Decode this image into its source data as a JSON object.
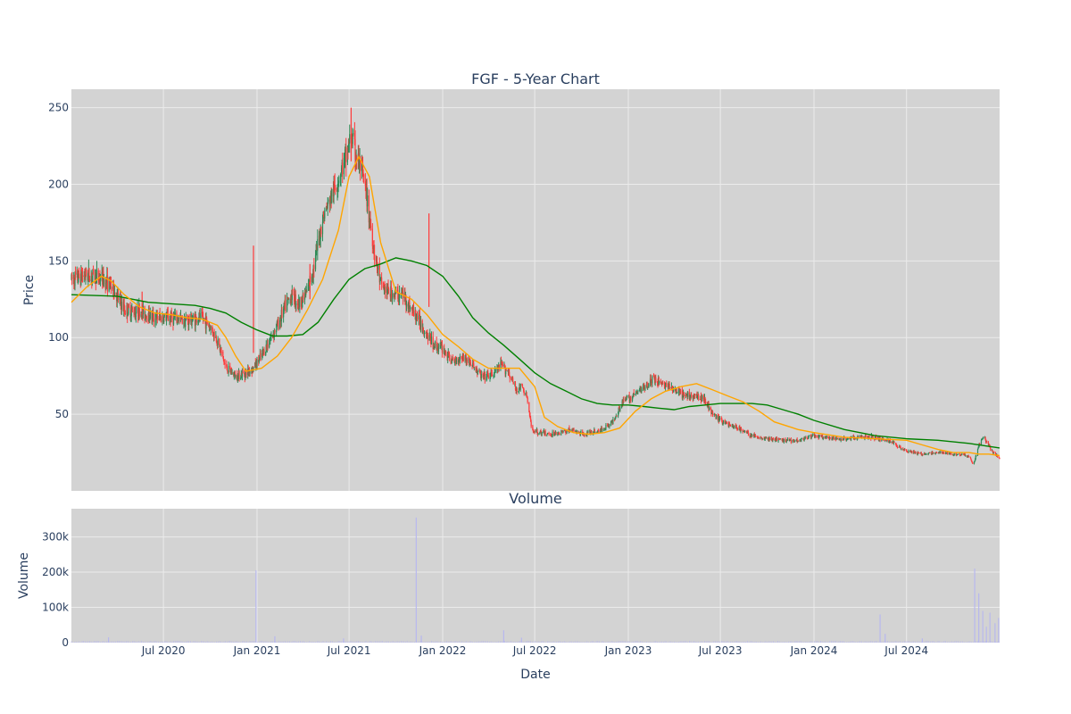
{
  "chart_data": [
    {
      "type": "candlestick",
      "title": "FGF - 5-Year Chart",
      "ylabel": "Price",
      "ylim": [
        0,
        262
      ],
      "yticks": [
        50,
        100,
        150,
        200,
        250
      ],
      "xlim": [
        "2020-01-02",
        "2024-12-31"
      ],
      "grid": true,
      "legend": "none",
      "colors": {
        "up": "#2e8b57",
        "down": "#ff3b3b",
        "ma_short": "#ffa500",
        "ma_long": "#008000",
        "plot_bg": "#d3d3d3",
        "grid": "#ebebeb"
      },
      "close_trend": {
        "x": [
          "2020-01-02",
          "2020-02-01",
          "2020-03-01",
          "2020-03-20",
          "2020-04-15",
          "2020-05-15",
          "2020-06-15",
          "2020-07-15",
          "2020-08-15",
          "2020-09-15",
          "2020-10-01",
          "2020-10-15",
          "2020-11-01",
          "2020-11-20",
          "2020-12-10",
          "2020-12-25",
          "2021-01-10",
          "2021-01-25",
          "2021-02-10",
          "2021-02-25",
          "2021-03-10",
          "2021-03-25",
          "2021-04-10",
          "2021-04-25",
          "2021-05-10",
          "2021-05-25",
          "2021-06-10",
          "2021-06-25",
          "2021-07-05",
          "2021-07-15",
          "2021-07-25",
          "2021-08-05",
          "2021-08-20",
          "2021-09-01",
          "2021-09-15",
          "2021-10-01",
          "2021-10-15",
          "2021-11-01",
          "2021-11-15",
          "2021-12-01",
          "2021-12-15",
          "2022-01-01",
          "2022-01-20",
          "2022-02-10",
          "2022-03-01",
          "2022-03-20",
          "2022-04-10",
          "2022-04-25",
          "2022-05-10",
          "2022-05-25",
          "2022-06-05",
          "2022-06-15",
          "2022-06-25",
          "2022-07-10",
          "2022-08-01",
          "2022-08-20",
          "2022-09-10",
          "2022-10-01",
          "2022-10-20",
          "2022-11-10",
          "2022-12-01",
          "2022-12-20",
          "2023-01-10",
          "2023-02-01",
          "2023-02-20",
          "2023-03-10",
          "2023-04-01",
          "2023-04-20",
          "2023-05-10",
          "2023-06-01",
          "2023-06-15",
          "2023-07-01",
          "2023-07-20",
          "2023-08-10",
          "2023-09-01",
          "2023-10-01",
          "2023-11-01",
          "2023-12-01",
          "2024-01-01",
          "2024-02-01",
          "2024-03-01",
          "2024-04-01",
          "2024-05-01",
          "2024-06-01",
          "2024-07-01",
          "2024-08-01",
          "2024-09-01",
          "2024-10-01",
          "2024-10-20",
          "2024-11-01",
          "2024-11-10",
          "2024-11-20",
          "2024-12-01",
          "2024-12-15",
          "2024-12-31"
        ],
        "close": [
          138,
          141,
          139,
          134,
          118,
          117,
          113,
          113,
          111,
          113,
          107,
          98,
          80,
          75,
          77,
          80,
          88,
          98,
          108,
          120,
          128,
          122,
          130,
          150,
          178,
          190,
          204,
          218,
          232,
          218,
          210,
          190,
          155,
          135,
          130,
          128,
          128,
          118,
          112,
          102,
          95,
          93,
          84,
          88,
          82,
          74,
          76,
          82,
          78,
          66,
          68,
          62,
          40,
          38,
          37,
          38,
          40,
          37,
          38,
          40,
          45,
          58,
          62,
          68,
          73,
          70,
          66,
          62,
          62,
          60,
          50,
          46,
          43,
          40,
          36,
          34,
          33,
          33,
          36,
          34,
          34,
          35,
          35,
          32,
          26,
          24,
          25,
          24,
          24,
          22,
          17,
          30,
          35,
          26,
          21
        ]
      },
      "ma_short": {
        "x": [
          "2020-01-02",
          "2020-02-01",
          "2020-03-01",
          "2020-03-20",
          "2020-04-15",
          "2020-05-15",
          "2020-06-15",
          "2020-07-15",
          "2020-08-15",
          "2020-09-15",
          "2020-10-15",
          "2020-11-01",
          "2020-11-20",
          "2020-12-10",
          "2021-01-10",
          "2021-02-10",
          "2021-03-10",
          "2021-04-10",
          "2021-05-10",
          "2021-06-10",
          "2021-07-01",
          "2021-07-20",
          "2021-08-10",
          "2021-09-01",
          "2021-10-01",
          "2021-11-01",
          "2021-12-01",
          "2022-01-01",
          "2022-02-01",
          "2022-03-01",
          "2022-04-01",
          "2022-05-01",
          "2022-06-01",
          "2022-07-01",
          "2022-07-20",
          "2022-08-15",
          "2022-09-15",
          "2022-10-15",
          "2022-11-15",
          "2022-12-15",
          "2023-01-15",
          "2023-02-15",
          "2023-03-15",
          "2023-04-15",
          "2023-05-15",
          "2023-06-15",
          "2023-07-15",
          "2023-08-15",
          "2023-09-15",
          "2023-10-15",
          "2023-12-01",
          "2024-01-01",
          "2024-03-01",
          "2024-05-01",
          "2024-07-01",
          "2024-08-01",
          "2024-09-01",
          "2024-10-01",
          "2024-11-01",
          "2024-11-20",
          "2024-12-10",
          "2024-12-31"
        ],
        "values": [
          123,
          133,
          140,
          137,
          128,
          120,
          116,
          115,
          113,
          112,
          108,
          100,
          88,
          78,
          80,
          88,
          100,
          118,
          138,
          170,
          205,
          218,
          205,
          162,
          130,
          125,
          115,
          102,
          94,
          86,
          80,
          80,
          80,
          68,
          48,
          42,
          38,
          37,
          38,
          41,
          52,
          60,
          65,
          68,
          70,
          66,
          62,
          58,
          52,
          45,
          40,
          38,
          35,
          34,
          33,
          30,
          27,
          25,
          25,
          24,
          24,
          23
        ]
      },
      "ma_long": {
        "x": [
          "2020-01-02",
          "2020-04-01",
          "2020-06-01",
          "2020-09-01",
          "2020-10-01",
          "2020-11-01",
          "2020-12-01",
          "2021-01-01",
          "2021-02-01",
          "2021-03-01",
          "2021-04-01",
          "2021-05-01",
          "2021-06-01",
          "2021-07-01",
          "2021-08-01",
          "2021-09-01",
          "2021-10-01",
          "2021-11-01",
          "2021-12-01",
          "2022-01-01",
          "2022-02-01",
          "2022-03-01",
          "2022-04-01",
          "2022-05-01",
          "2022-06-01",
          "2022-07-01",
          "2022-08-01",
          "2022-09-01",
          "2022-10-01",
          "2022-11-01",
          "2022-12-01",
          "2023-01-01",
          "2023-02-01",
          "2023-03-01",
          "2023-04-01",
          "2023-05-01",
          "2023-06-01",
          "2023-07-01",
          "2023-08-01",
          "2023-09-01",
          "2023-10-01",
          "2023-11-01",
          "2023-12-01",
          "2024-01-01",
          "2024-03-01",
          "2024-05-01",
          "2024-07-01",
          "2024-09-01",
          "2024-11-01",
          "2024-12-31"
        ],
        "values": [
          128,
          127,
          123,
          121,
          119,
          116,
          110,
          105,
          101,
          101,
          102,
          110,
          125,
          138,
          145,
          148,
          152,
          150,
          147,
          140,
          127,
          113,
          103,
          95,
          86,
          77,
          70,
          65,
          60,
          57,
          56,
          56,
          55,
          54,
          53,
          55,
          56,
          57,
          57,
          57,
          56,
          53,
          50,
          46,
          40,
          36,
          34,
          33,
          31,
          28
        ]
      }
    },
    {
      "type": "bar",
      "title": "Volume",
      "xlabel": "Date",
      "ylabel": "Volume",
      "ylim": [
        0,
        380000
      ],
      "yticks": [
        0,
        100000,
        200000,
        300000
      ],
      "ytick_labels": [
        "0",
        "100k",
        "200k",
        "300k"
      ],
      "xtick_labels": [
        "Jul 2020",
        "Jan 2021",
        "Jul 2021",
        "Jan 2022",
        "Jul 2022",
        "Jan 2023",
        "Jul 2023",
        "Jan 2024",
        "Jul 2024"
      ],
      "xtick_dates": [
        "2020-07-01",
        "2021-01-01",
        "2021-07-01",
        "2022-01-01",
        "2022-07-01",
        "2023-01-01",
        "2023-07-01",
        "2024-01-01",
        "2024-07-01"
      ],
      "bar_color": "#b8b8ee",
      "spikes": [
        {
          "x": "2020-03-15",
          "value": 15000
        },
        {
          "x": "2020-12-30",
          "value": 205000
        },
        {
          "x": "2021-02-05",
          "value": 18000
        },
        {
          "x": "2021-06-20",
          "value": 12000
        },
        {
          "x": "2021-11-10",
          "value": 355000
        },
        {
          "x": "2021-11-20",
          "value": 20000
        },
        {
          "x": "2022-05-01",
          "value": 35000
        },
        {
          "x": "2022-06-05",
          "value": 14000
        },
        {
          "x": "2024-05-10",
          "value": 80000
        },
        {
          "x": "2024-05-20",
          "value": 25000
        },
        {
          "x": "2024-08-01",
          "value": 12000
        },
        {
          "x": "2024-11-12",
          "value": 210000
        },
        {
          "x": "2024-11-20",
          "value": 140000
        },
        {
          "x": "2024-11-28",
          "value": 90000
        },
        {
          "x": "2024-12-05",
          "value": 45000
        },
        {
          "x": "2024-12-12",
          "value": 85000
        },
        {
          "x": "2024-12-22",
          "value": 55000
        },
        {
          "x": "2024-12-29",
          "value": 70000
        }
      ],
      "baseline": 3000
    }
  ]
}
